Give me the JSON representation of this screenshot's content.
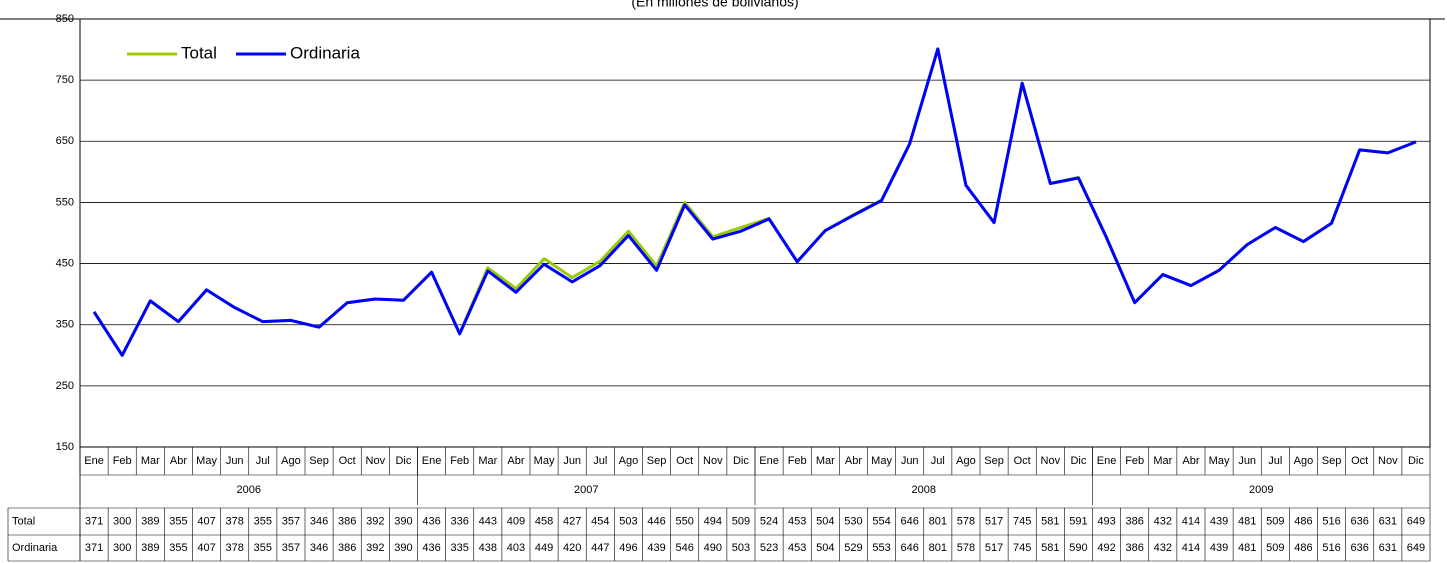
{
  "chart_data": {
    "type": "line",
    "subtitle": "(En millones de bolivianos)",
    "categories": [
      "Ene",
      "Feb",
      "Mar",
      "Abr",
      "May",
      "Jun",
      "Jul",
      "Ago",
      "Sep",
      "Oct",
      "Nov",
      "Dic",
      "Ene",
      "Feb",
      "Mar",
      "Abr",
      "May",
      "Jun",
      "Jul",
      "Ago",
      "Sep",
      "Oct",
      "Nov",
      "Dic",
      "Ene",
      "Feb",
      "Mar",
      "Abr",
      "May",
      "Jun",
      "Jul",
      "Ago",
      "Sep",
      "Oct",
      "Nov",
      "Dic",
      "Ene",
      "Feb",
      "Mar",
      "Abr",
      "May",
      "Jun",
      "Jul",
      "Ago",
      "Sep",
      "Oct",
      "Nov",
      "Dic"
    ],
    "groups": [
      "2006",
      "2007",
      "2008",
      "2009"
    ],
    "series": [
      {
        "name": "Total",
        "color": "#99cc00",
        "values": [
          371,
          300,
          389,
          355,
          407,
          378,
          355,
          357,
          346,
          386,
          392,
          390,
          436,
          336,
          443,
          409,
          458,
          427,
          454,
          503,
          446,
          550,
          494,
          509,
          524,
          453,
          504,
          530,
          554,
          646,
          801,
          578,
          517,
          745,
          581,
          591,
          493,
          386,
          432,
          414,
          439,
          481,
          509,
          486,
          516,
          636,
          631,
          649
        ]
      },
      {
        "name": "Ordinaria",
        "color": "#0000ff",
        "values": [
          371,
          300,
          389,
          355,
          407,
          378,
          355,
          357,
          346,
          386,
          392,
          390,
          436,
          335,
          438,
          403,
          449,
          420,
          447,
          496,
          439,
          546,
          490,
          503,
          523,
          453,
          504,
          529,
          553,
          646,
          801,
          578,
          517,
          745,
          581,
          590,
          492,
          386,
          432,
          414,
          439,
          481,
          509,
          486,
          516,
          636,
          631,
          649
        ]
      }
    ],
    "ylim": [
      150,
      850
    ],
    "yticks": [
      150,
      250,
      350,
      450,
      550,
      650,
      750,
      850
    ],
    "grid": true,
    "legend": "top-left"
  }
}
